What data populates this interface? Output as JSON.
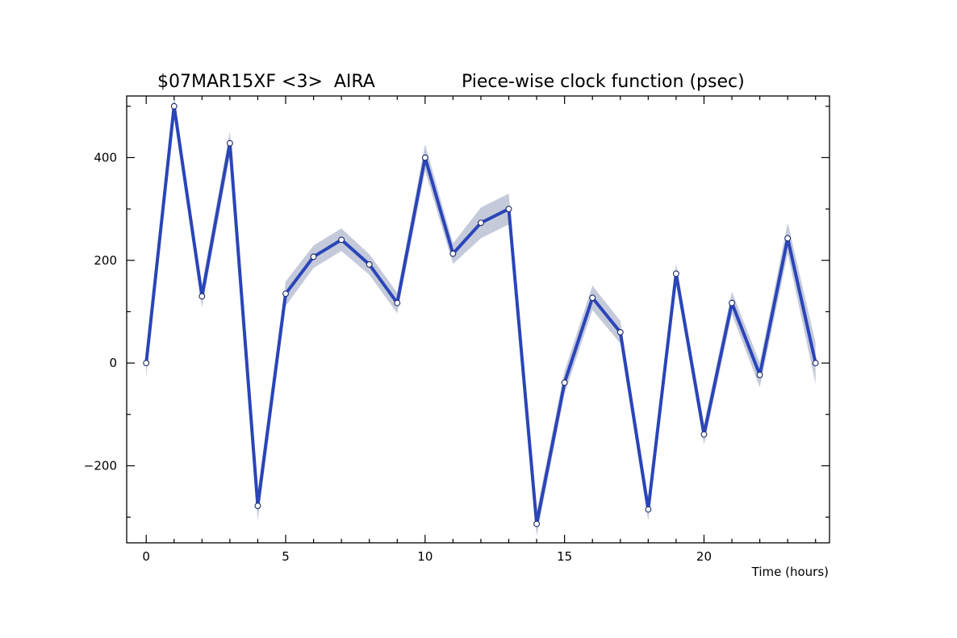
{
  "chart_data": {
    "type": "line",
    "title_left": "$07MAR15XF <3>  AIRA",
    "title_right": "Piece-wise clock function (psec)",
    "xlabel": "Time (hours)",
    "ylabel": "",
    "xlim": [
      -0.7,
      24.5
    ],
    "ylim": [
      -350,
      520
    ],
    "x_ticks": [
      0,
      5,
      10,
      15,
      20
    ],
    "x_tick_labels": [
      "0",
      "5",
      "10",
      "15",
      "20"
    ],
    "y_ticks": [
      -200,
      0,
      200,
      400
    ],
    "y_tick_labels": [
      "−200",
      "0",
      "200",
      "400"
    ],
    "x_minor_step": 1,
    "y_minor_step": 100,
    "grid": false,
    "legend": "none",
    "line_color": "#2a45b8",
    "band_color": "#c5cadb",
    "series": [
      {
        "x": [
          0,
          1,
          2,
          3,
          4,
          5,
          6,
          7,
          8,
          9,
          10,
          11,
          12,
          13,
          14,
          15,
          16,
          17,
          18,
          19,
          20,
          21,
          22,
          23,
          24
        ],
        "values": [
          0,
          500,
          130,
          428,
          -278,
          135,
          207,
          240,
          192,
          117,
          400,
          213,
          273,
          300,
          -313,
          -38,
          127,
          60,
          -285,
          174,
          -139,
          117,
          -23,
          243,
          0
        ],
        "uncertainty": [
          28,
          22,
          22,
          24,
          28,
          24,
          22,
          22,
          20,
          20,
          26,
          20,
          30,
          30,
          24,
          22,
          24,
          22,
          22,
          20,
          20,
          22,
          24,
          30,
          40
        ]
      }
    ]
  }
}
